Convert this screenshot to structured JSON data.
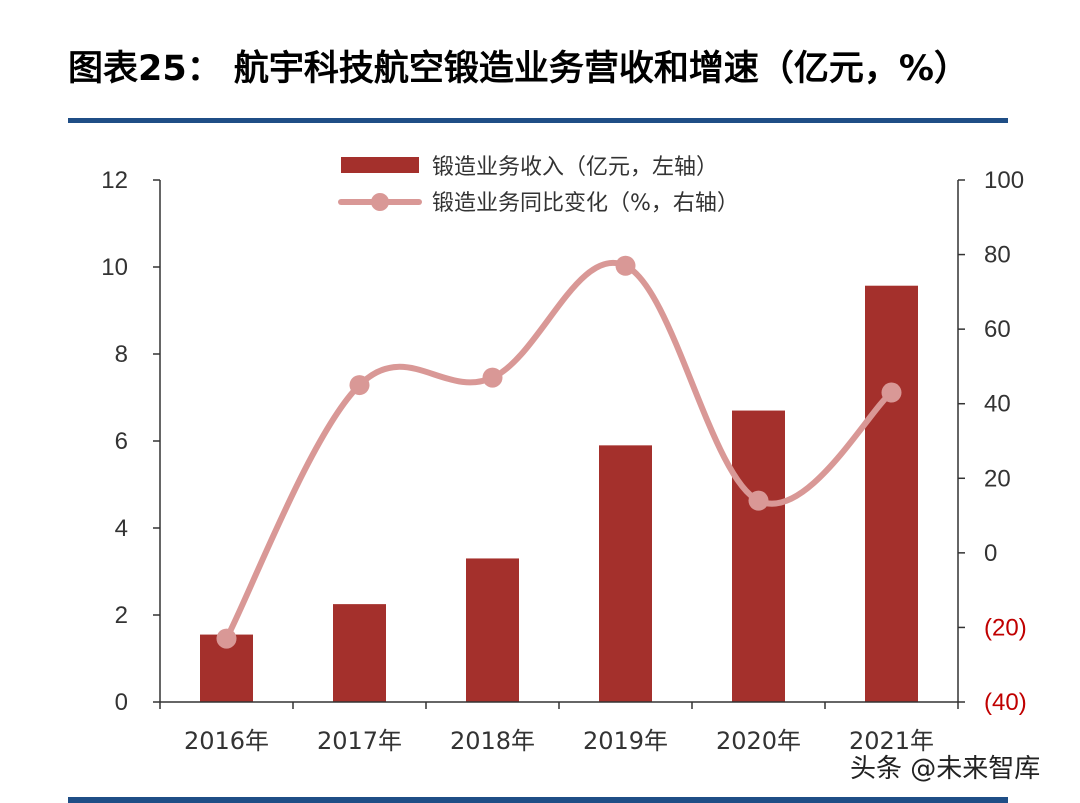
{
  "title": "图表25：  航宇科技航空锻造业务营收和增速（亿元，%）",
  "watermark": "头条 @未来智库",
  "colors": {
    "bar": "#a4302c",
    "line": "#d99896",
    "axis": "#333333",
    "negative": "#c00000",
    "rule": "#1f4e86"
  },
  "chart_data": {
    "type": "bar",
    "categories": [
      "2016年",
      "2017年",
      "2018年",
      "2019年",
      "2020年",
      "2021年"
    ],
    "series": [
      {
        "name": "锻造业务收入（亿元，左轴）",
        "type": "bar",
        "axis": "left",
        "values": [
          1.55,
          2.25,
          3.3,
          5.9,
          6.7,
          9.57
        ]
      },
      {
        "name": "锻造业务同比变化（%，右轴）",
        "type": "line",
        "axis": "right",
        "values": [
          -23,
          45,
          47,
          77,
          14,
          43
        ]
      }
    ],
    "left_axis": {
      "min": 0,
      "max": 12,
      "ticks": [
        "0",
        "2",
        "4",
        "6",
        "8",
        "10",
        "12"
      ]
    },
    "right_axis": {
      "min": -40,
      "max": 100,
      "ticks": [
        "(40)",
        "(20)",
        "0",
        "20",
        "40",
        "60",
        "80",
        "100"
      ]
    },
    "grid": false,
    "legend": "top"
  }
}
